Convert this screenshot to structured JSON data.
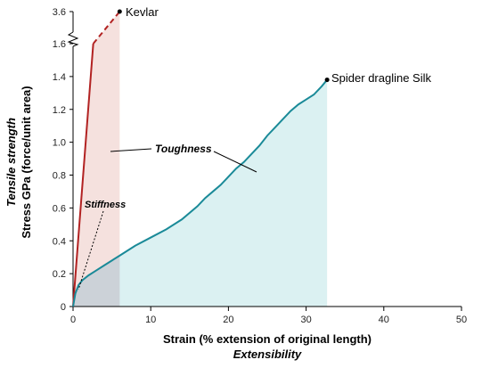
{
  "chart_data": {
    "type": "line",
    "xlabel": "Strain (% extension of original length)",
    "xlabel2": "Extensibility",
    "ylabel": "Stress GPa (force/unit area)",
    "ylabel2": "Tensile strength",
    "xlim": [
      0,
      50
    ],
    "ylim": [
      0,
      3.6
    ],
    "y_axis_break": [
      1.6,
      3.6
    ],
    "x_ticks": [
      0,
      10,
      20,
      30,
      40,
      50
    ],
    "x_tick_labels": [
      "0",
      "10",
      "20",
      "30",
      "40",
      "50"
    ],
    "y_ticks": [
      0,
      0.2,
      0.4,
      0.6,
      0.8,
      1.0,
      1.2,
      1.4,
      1.6,
      3.6
    ],
    "y_tick_labels": [
      "0",
      "0.2",
      "0.4",
      "0.6",
      "0.8",
      "1.0",
      "1.2",
      "1.4",
      "1.6",
      "3.6"
    ],
    "grid": false,
    "series": [
      {
        "name": "Kevlar",
        "color": "#b22222",
        "fill": "#f3dcd8",
        "x": [
          0,
          2.6,
          6.0
        ],
        "y": [
          0,
          1.6,
          3.6
        ],
        "dashed_from_index": 1
      },
      {
        "name": "Spider dragline Silk",
        "color": "#1a8a98",
        "fill": "#d7eff1",
        "x": [
          0,
          0.3,
          0.7,
          1.2,
          2,
          3,
          4,
          5,
          6,
          8,
          10,
          12,
          14,
          16,
          17,
          18,
          19,
          20,
          21,
          22,
          23,
          24,
          25,
          26,
          27,
          28,
          29,
          30,
          31,
          32,
          32.7
        ],
        "y": [
          0,
          0.08,
          0.13,
          0.16,
          0.19,
          0.22,
          0.25,
          0.28,
          0.31,
          0.37,
          0.42,
          0.47,
          0.53,
          0.61,
          0.66,
          0.7,
          0.74,
          0.79,
          0.84,
          0.88,
          0.93,
          0.98,
          1.04,
          1.09,
          1.14,
          1.19,
          1.23,
          1.26,
          1.29,
          1.34,
          1.38
        ]
      }
    ],
    "annotations": {
      "toughness": "Toughness",
      "stiffness": "Stiffness"
    }
  }
}
